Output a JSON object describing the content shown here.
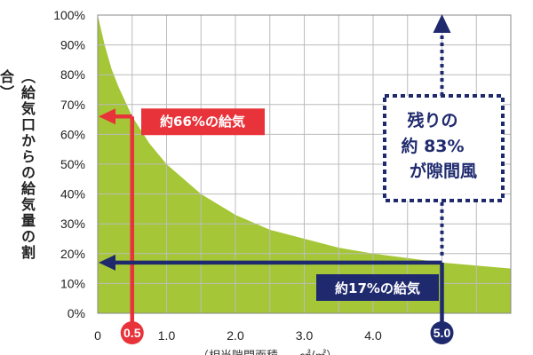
{
  "chart_data": {
    "type": "area",
    "ylabel": "（給気口からの給気量の割合）",
    "y_ticks": [
      "0%",
      "10%",
      "20%",
      "30%",
      "40%",
      "50%",
      "60%",
      "70%",
      "80%",
      "90%",
      "100%"
    ],
    "x_ticks": [
      "0",
      "1.0",
      "2.0",
      "3.0",
      "4.0"
    ],
    "ylim": [
      0,
      100
    ],
    "xlim": [
      0,
      6
    ],
    "grid": true,
    "series": [
      {
        "x": [
          0,
          0.1,
          0.2,
          0.3,
          0.5,
          0.75,
          1.0,
          1.5,
          2.0,
          2.5,
          3.0,
          3.5,
          4.0,
          4.5,
          5.0,
          5.5,
          6.0
        ],
        "y": [
          100,
          90,
          82,
          76,
          66,
          57,
          50,
          40,
          33,
          28,
          25,
          22,
          20,
          18.5,
          17,
          16,
          15
        ]
      }
    ],
    "annotations": [
      {
        "x": 0.5,
        "marker_label": "0.5",
        "y": 66,
        "text": "約66%の給気",
        "color": "#e8333a"
      },
      {
        "x": 5.0,
        "marker_label": "5.0",
        "y": 17,
        "text": "約17%の給気",
        "color": "#1f2a6e"
      },
      {
        "x": 5.0,
        "text_lines": [
          "残りの",
          "約 83%",
          "が隙間風"
        ],
        "color": "#1f2a6e",
        "style": "dotted"
      }
    ],
    "colors": {
      "fill": "#a5c636",
      "red": "#e8333a",
      "navy": "#1f2a6e",
      "grid": "#bcbcbc"
    }
  },
  "xlabel": "（相当隙間面積 ── ㎠/㎡）"
}
